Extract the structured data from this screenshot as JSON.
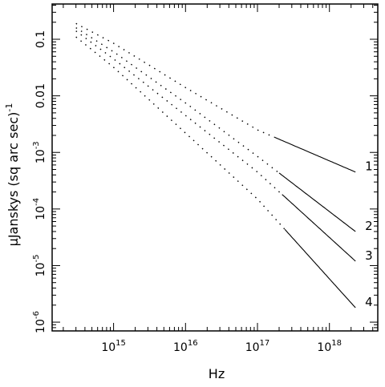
{
  "chart_data": {
    "type": "line",
    "xlabel": "Hz",
    "ylabel": "μJanskys (sq arc sec)",
    "ylabel_exponent": "-1",
    "x_scale": "log",
    "y_scale": "log",
    "xlim": [
      140000000000000.0,
      4.7e+18
    ],
    "ylim": [
      7e-07,
      0.42
    ],
    "grid": false,
    "legend": "none",
    "x_ticks": [
      {
        "value": 1000000000000000.0,
        "base": "10",
        "exp": "15"
      },
      {
        "value": 1e+16,
        "base": "10",
        "exp": "16"
      },
      {
        "value": 1e+17,
        "base": "10",
        "exp": "17"
      },
      {
        "value": 1e+18,
        "base": "10",
        "exp": "18"
      }
    ],
    "y_ticks": [
      {
        "value": 0.1,
        "base": "0.1",
        "exp": ""
      },
      {
        "value": 0.01,
        "base": "0.01",
        "exp": ""
      },
      {
        "value": 0.001,
        "base": "10",
        "exp": "-3"
      },
      {
        "value": 0.0001,
        "base": "10",
        "exp": "-4"
      },
      {
        "value": 1e-05,
        "base": "10",
        "exp": "-5"
      },
      {
        "value": 1e-06,
        "base": "10",
        "exp": "-6"
      }
    ],
    "series": [
      {
        "name": "1",
        "x": [
          300000000000000.0,
          1000000000000000.0,
          1e+16,
          1e+17,
          2.3e+18
        ],
        "y": [
          0.19,
          0.085,
          0.014,
          0.0025,
          0.00045
        ],
        "style": "dotted-then-solid",
        "solid_from": 1.7e+17
      },
      {
        "name": "2",
        "x": [
          300000000000000.0,
          1000000000000000.0,
          1e+16,
          1e+17,
          2.3e+18
        ],
        "y": [
          0.16,
          0.06,
          0.0075,
          0.00085,
          4e-05
        ],
        "style": "dotted-then-solid",
        "solid_from": 2e+17
      },
      {
        "name": "3",
        "x": [
          300000000000000.0,
          1000000000000000.0,
          1e+16,
          1e+17,
          2.3e+18
        ],
        "y": [
          0.14,
          0.045,
          0.0045,
          0.00045,
          1.2e-05
        ],
        "style": "dotted-then-solid",
        "solid_from": 2.2e+17
      },
      {
        "name": "4",
        "x": [
          300000000000000.0,
          1000000000000000.0,
          1e+16,
          1e+17,
          2.3e+18
        ],
        "y": [
          0.11,
          0.032,
          0.0022,
          0.00015,
          1.8e-06
        ],
        "style": "dotted-then-solid",
        "solid_from": 2.4e+17
      }
    ]
  }
}
